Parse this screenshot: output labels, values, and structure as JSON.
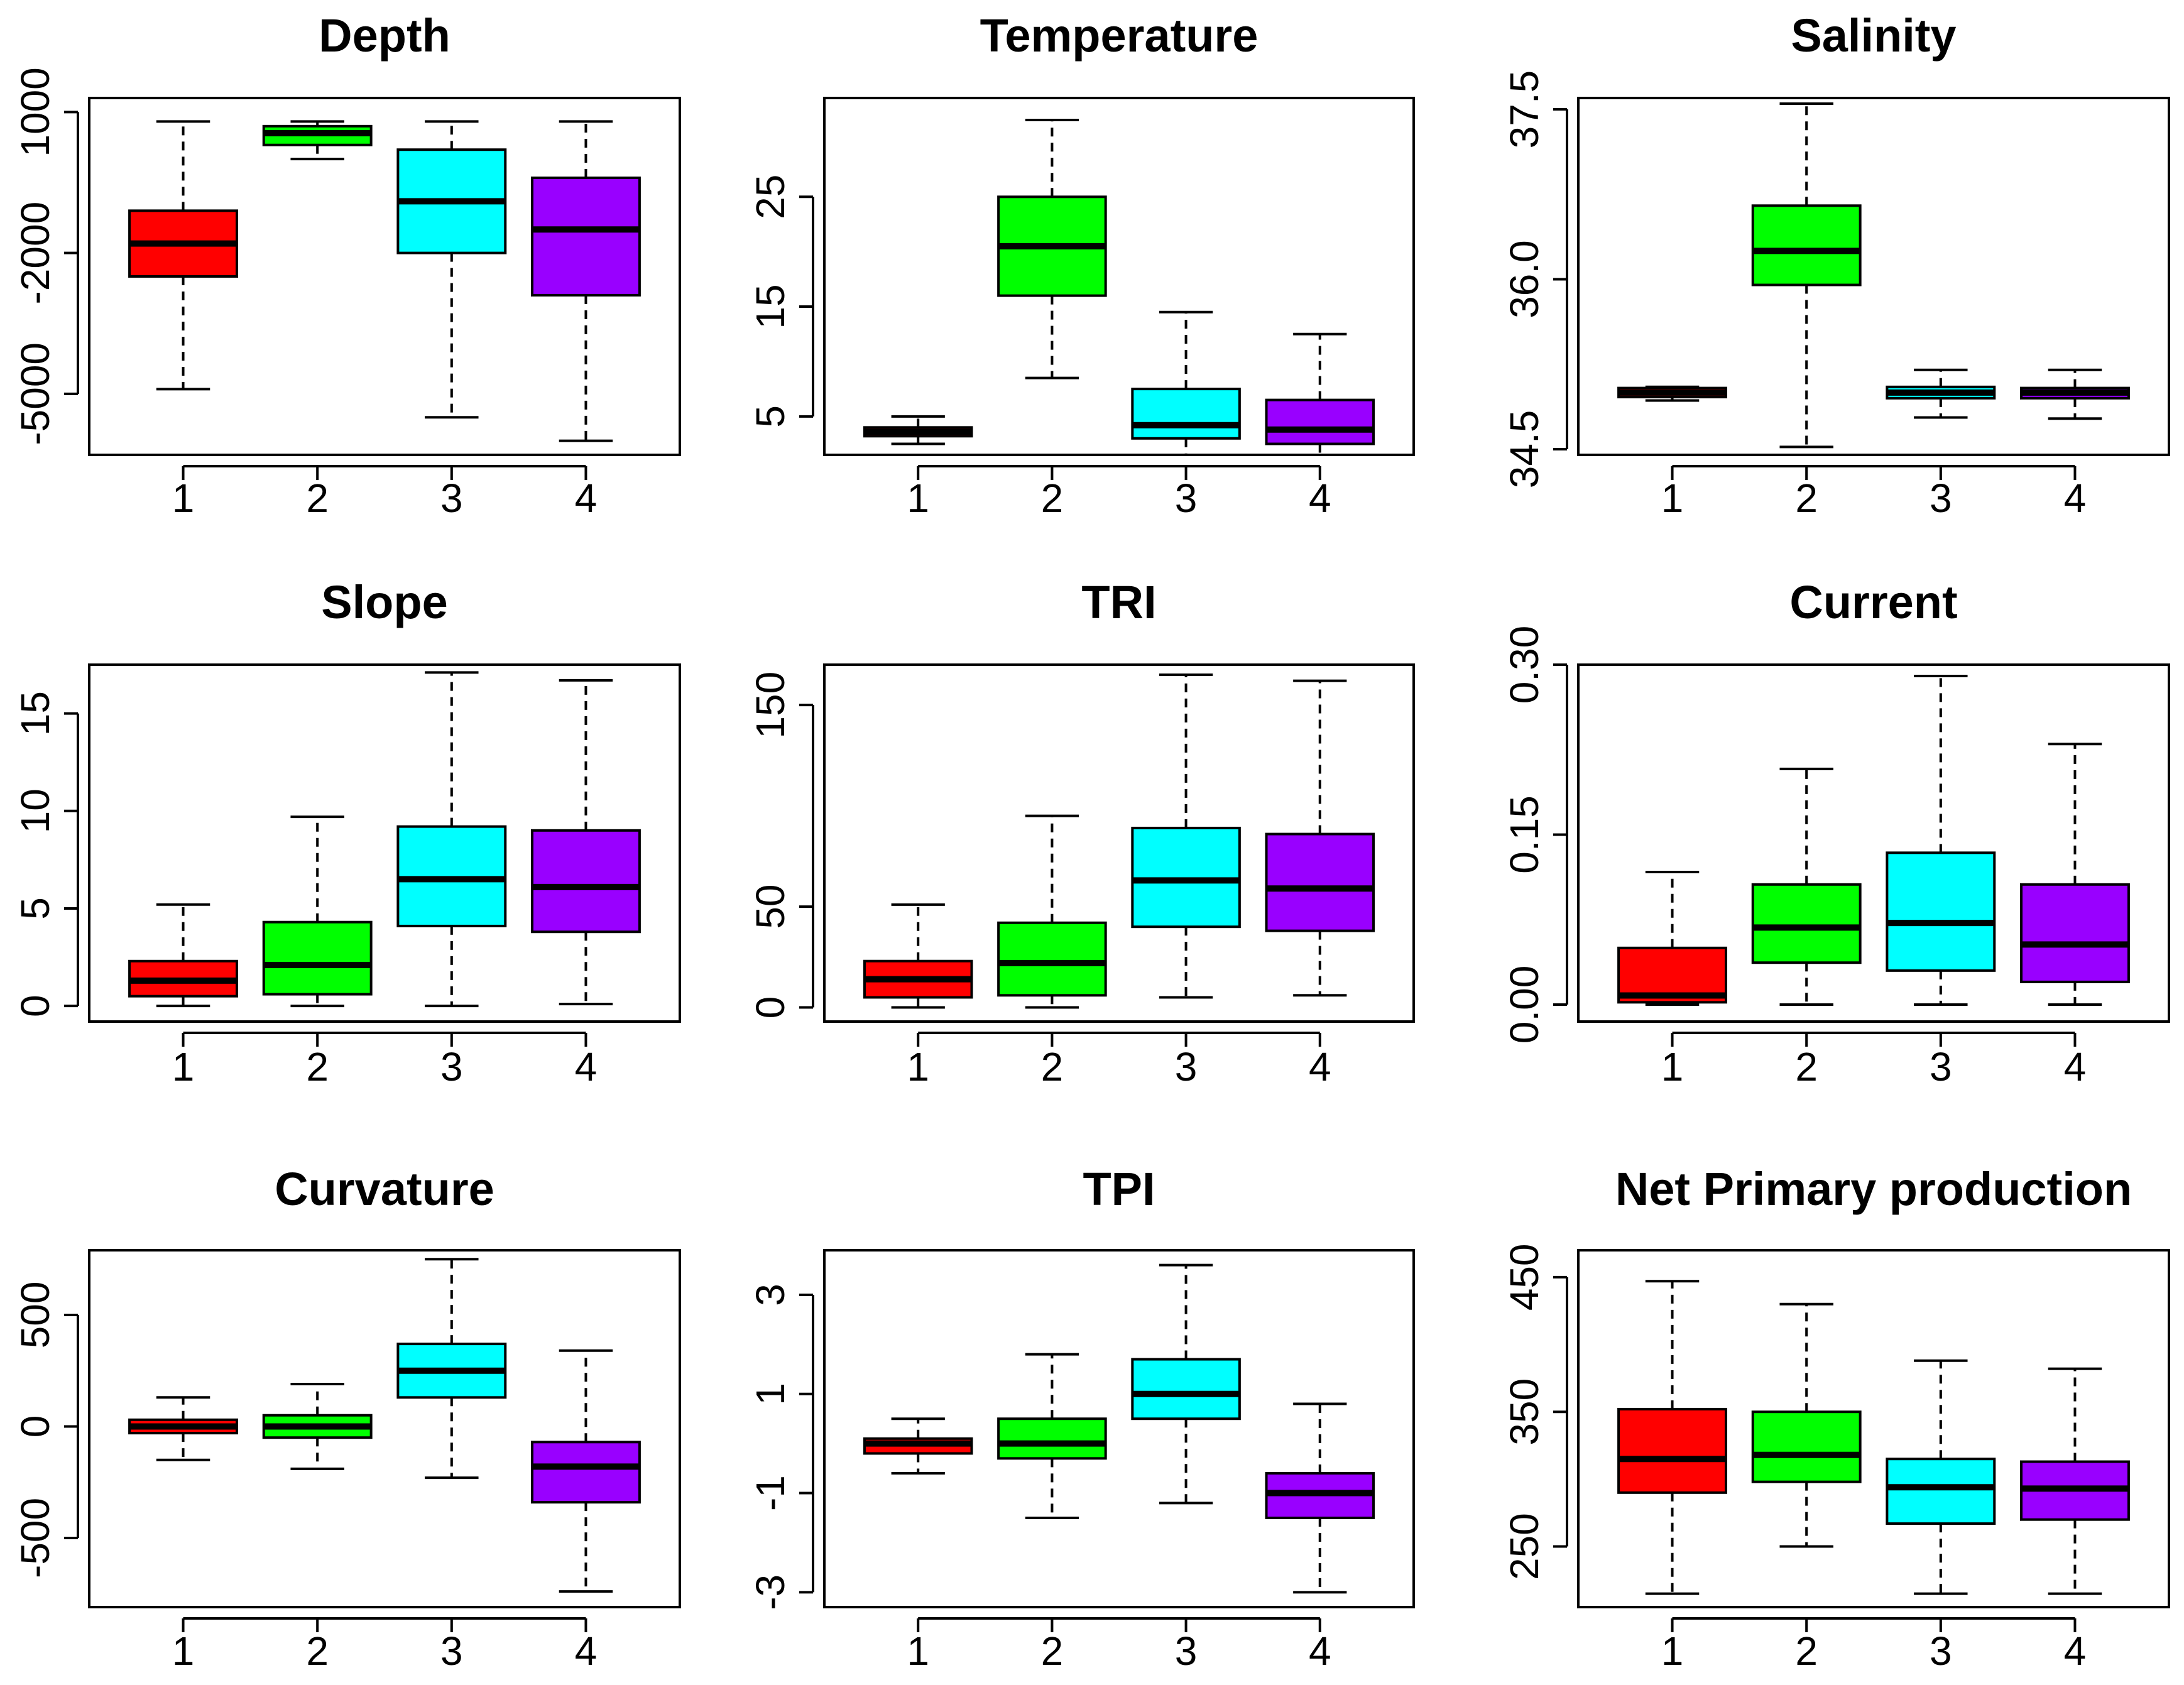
{
  "colors": {
    "group_1": "#ff0000",
    "group_2": "#00ff00",
    "group_3": "#00ffff",
    "group_4": "#9900ff"
  },
  "chart_data": [
    {
      "type": "box",
      "title": "Depth",
      "categories": [
        "1",
        "2",
        "3",
        "4"
      ],
      "ylim": [
        -6300,
        1300
      ],
      "yticks": [
        -5000,
        -2000,
        1000
      ],
      "ytick_labels": [
        "-5000",
        "-2000",
        "1000"
      ],
      "boxes": [
        {
          "min": -4900,
          "q1": -2500,
          "median": -1800,
          "q3": -1100,
          "max": 800
        },
        {
          "min": 0,
          "q1": 300,
          "median": 550,
          "q3": 700,
          "max": 800
        },
        {
          "min": -5500,
          "q1": -2000,
          "median": -900,
          "q3": 200,
          "max": 800
        },
        {
          "min": -6000,
          "q1": -2900,
          "median": -1500,
          "q3": -400,
          "max": 800
        }
      ]
    },
    {
      "type": "box",
      "title": "Temperature",
      "categories": [
        "1",
        "2",
        "3",
        "4"
      ],
      "ylim": [
        1.5,
        34
      ],
      "yticks": [
        5,
        15,
        25
      ],
      "ytick_labels": [
        "5",
        "15",
        "25"
      ],
      "boxes": [
        {
          "min": 2.5,
          "q1": 3.2,
          "median": 3.6,
          "q3": 4.0,
          "max": 5.0
        },
        {
          "min": 8.5,
          "q1": 16.0,
          "median": 20.5,
          "q3": 25.0,
          "max": 32.0
        },
        {
          "min": 1.5,
          "q1": 3.0,
          "median": 4.2,
          "q3": 7.5,
          "max": 14.5
        },
        {
          "min": 1.5,
          "q1": 2.5,
          "median": 3.8,
          "q3": 6.5,
          "max": 12.5
        }
      ]
    },
    {
      "type": "box",
      "title": "Salinity",
      "categories": [
        "1",
        "2",
        "3",
        "4"
      ],
      "ylim": [
        34.45,
        37.6
      ],
      "yticks": [
        34.5,
        36.0,
        37.5
      ],
      "ytick_labels": [
        "34.5",
        "36.0",
        "37.5"
      ],
      "boxes": [
        {
          "min": 34.93,
          "q1": 34.96,
          "median": 35.0,
          "q3": 35.04,
          "max": 35.05
        },
        {
          "min": 34.52,
          "q1": 35.95,
          "median": 36.25,
          "q3": 36.65,
          "max": 37.55
        },
        {
          "min": 34.78,
          "q1": 34.95,
          "median": 35.0,
          "q3": 35.05,
          "max": 35.2
        },
        {
          "min": 34.77,
          "q1": 34.95,
          "median": 35.0,
          "q3": 35.04,
          "max": 35.2
        }
      ]
    },
    {
      "type": "box",
      "title": "Slope",
      "categories": [
        "1",
        "2",
        "3",
        "4"
      ],
      "ylim": [
        -0.8,
        17.5
      ],
      "yticks": [
        0,
        5,
        10,
        15
      ],
      "ytick_labels": [
        "0",
        "5",
        "10",
        "15"
      ],
      "boxes": [
        {
          "min": 0,
          "q1": 0.5,
          "median": 1.3,
          "q3": 2.3,
          "max": 5.2
        },
        {
          "min": 0,
          "q1": 0.6,
          "median": 2.1,
          "q3": 4.3,
          "max": 9.7
        },
        {
          "min": 0,
          "q1": 4.1,
          "median": 6.5,
          "q3": 9.2,
          "max": 17.1
        },
        {
          "min": 0.1,
          "q1": 3.8,
          "median": 6.1,
          "q3": 9.0,
          "max": 16.7
        }
      ]
    },
    {
      "type": "box",
      "title": "TRI",
      "categories": [
        "1",
        "2",
        "3",
        "4"
      ],
      "ylim": [
        -7,
        170
      ],
      "yticks": [
        0,
        50,
        150
      ],
      "ytick_labels": [
        "0",
        "50",
        "150"
      ],
      "boxes": [
        {
          "min": 0,
          "q1": 5,
          "median": 14,
          "q3": 23,
          "max": 51
        },
        {
          "min": 0,
          "q1": 6,
          "median": 22,
          "q3": 42,
          "max": 95
        },
        {
          "min": 5,
          "q1": 40,
          "median": 63,
          "q3": 89,
          "max": 165
        },
        {
          "min": 6,
          "q1": 38,
          "median": 59,
          "q3": 86,
          "max": 162
        }
      ]
    },
    {
      "type": "box",
      "title": "Current",
      "categories": [
        "1",
        "2",
        "3",
        "4"
      ],
      "ylim": [
        -0.015,
        0.3
      ],
      "yticks": [
        0.0,
        0.15,
        0.3
      ],
      "ytick_labels": [
        "0.00",
        "0.15",
        "0.30"
      ],
      "boxes": [
        {
          "min": 0,
          "q1": 0.002,
          "median": 0.008,
          "q3": 0.05,
          "max": 0.117
        },
        {
          "min": 0,
          "q1": 0.037,
          "median": 0.068,
          "q3": 0.106,
          "max": 0.208
        },
        {
          "min": 0,
          "q1": 0.03,
          "median": 0.072,
          "q3": 0.134,
          "max": 0.29
        },
        {
          "min": 0,
          "q1": 0.02,
          "median": 0.053,
          "q3": 0.106,
          "max": 0.23
        }
      ]
    },
    {
      "type": "box",
      "title": "Curvature",
      "categories": [
        "1",
        "2",
        "3",
        "4"
      ],
      "ylim": [
        -810,
        790
      ],
      "yticks": [
        -500,
        0,
        500
      ],
      "ytick_labels": [
        "-500",
        "0",
        "500"
      ],
      "boxes": [
        {
          "min": -150,
          "q1": -30,
          "median": 0,
          "q3": 30,
          "max": 130
        },
        {
          "min": -190,
          "q1": -50,
          "median": 0,
          "q3": 50,
          "max": 190
        },
        {
          "min": -230,
          "q1": 130,
          "median": 250,
          "q3": 370,
          "max": 750
        },
        {
          "min": -740,
          "q1": -340,
          "median": -180,
          "q3": -70,
          "max": 340
        }
      ]
    },
    {
      "type": "box",
      "title": "TPI",
      "categories": [
        "1",
        "2",
        "3",
        "4"
      ],
      "ylim": [
        -3.3,
        3.9
      ],
      "yticks": [
        -3,
        -1,
        1,
        3
      ],
      "ytick_labels": [
        "-3",
        "-1",
        "1",
        "3"
      ],
      "boxes": [
        {
          "min": -0.6,
          "q1": -0.2,
          "median": 0.0,
          "q3": 0.1,
          "max": 0.5
        },
        {
          "min": -1.5,
          "q1": -0.3,
          "median": 0.0,
          "q3": 0.5,
          "max": 1.8
        },
        {
          "min": -1.2,
          "q1": 0.5,
          "median": 1.0,
          "q3": 1.7,
          "max": 3.6
        },
        {
          "min": -3.0,
          "q1": -1.5,
          "median": -1.0,
          "q3": -0.6,
          "max": 0.8
        }
      ]
    },
    {
      "type": "box",
      "title": "Net Primary production",
      "categories": [
        "1",
        "2",
        "3",
        "4"
      ],
      "ylim": [
        205,
        470
      ],
      "yticks": [
        250,
        350,
        450
      ],
      "ytick_labels": [
        "250",
        "350",
        "450"
      ],
      "boxes": [
        {
          "min": 215,
          "q1": 290,
          "median": 315,
          "q3": 352,
          "max": 447
        },
        {
          "min": 250,
          "q1": 298,
          "median": 318,
          "q3": 350,
          "max": 430
        },
        {
          "min": 215,
          "q1": 267,
          "median": 294,
          "q3": 315,
          "max": 388
        },
        {
          "min": 215,
          "q1": 270,
          "median": 293,
          "q3": 313,
          "max": 382
        }
      ]
    }
  ]
}
